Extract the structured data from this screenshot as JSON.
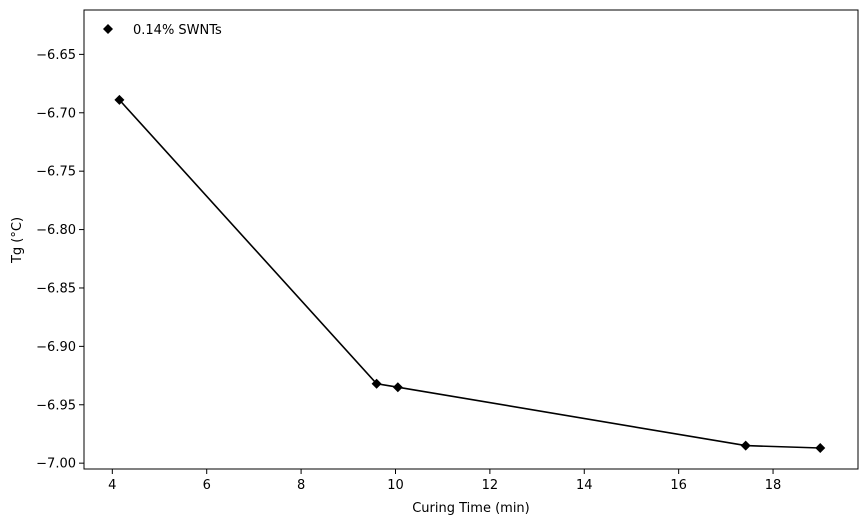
{
  "chart_data": {
    "type": "line",
    "xlabel": "Curing Time (min)",
    "ylabel": "Tg (°C)",
    "xlim": [
      3.4,
      19.8
    ],
    "ylim": [
      -7.005,
      -6.612
    ],
    "xticks": [
      4,
      6,
      8,
      10,
      12,
      14,
      16,
      18
    ],
    "yticks": [
      -7.0,
      -6.95,
      -6.9,
      -6.85,
      -6.8,
      -6.75,
      -6.7,
      -6.65
    ],
    "xtick_labels": [
      "4",
      "6",
      "8",
      "10",
      "12",
      "14",
      "16",
      "18"
    ],
    "ytick_labels": [
      "−7.00",
      "−6.95",
      "−6.90",
      "−6.85",
      "−6.80",
      "−6.75",
      "−6.70",
      "−6.65"
    ],
    "grid": false,
    "legend_position": "top-left",
    "series": [
      {
        "name": "0.14% SWNTs",
        "color": "#000000",
        "marker": "diamond",
        "x": [
          4.15,
          9.6,
          10.05,
          17.42,
          19.0
        ],
        "y": [
          -6.689,
          -6.932,
          -6.935,
          -6.985,
          -6.987
        ]
      }
    ]
  }
}
